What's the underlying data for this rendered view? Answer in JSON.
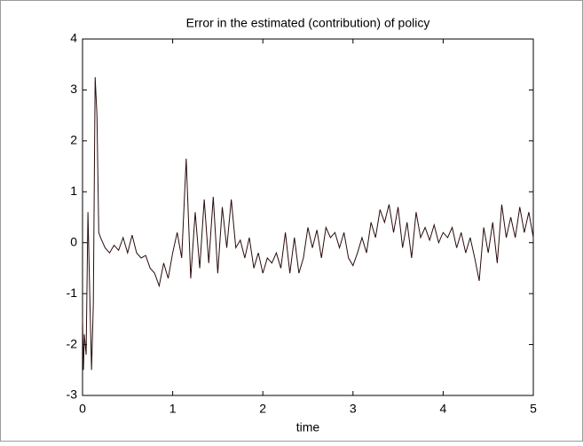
{
  "chart_data": {
    "type": "line",
    "title": "Error in the estimated (contribution) of policy",
    "xlabel": "time",
    "x": [
      0,
      0.01,
      0.02,
      0.04,
      0.06,
      0.08,
      0.1,
      0.12,
      0.14,
      0.16,
      0.18,
      0.2,
      0.25,
      0.3,
      0.35,
      0.4,
      0.45,
      0.5,
      0.55,
      0.6,
      0.65,
      0.7,
      0.75,
      0.8,
      0.85,
      0.9,
      0.95,
      1.0,
      1.05,
      1.1,
      1.15,
      1.2,
      1.25,
      1.3,
      1.35,
      1.4,
      1.45,
      1.5,
      1.55,
      1.6,
      1.65,
      1.7,
      1.75,
      1.8,
      1.85,
      1.9,
      1.95,
      2.0,
      2.05,
      2.1,
      2.15,
      2.2,
      2.25,
      2.3,
      2.35,
      2.4,
      2.45,
      2.5,
      2.55,
      2.6,
      2.65,
      2.7,
      2.75,
      2.8,
      2.85,
      2.9,
      2.95,
      3.0,
      3.05,
      3.1,
      3.15,
      3.2,
      3.25,
      3.3,
      3.35,
      3.4,
      3.45,
      3.5,
      3.55,
      3.6,
      3.65,
      3.7,
      3.75,
      3.8,
      3.85,
      3.9,
      3.95,
      4.0,
      4.05,
      4.1,
      4.15,
      4.2,
      4.25,
      4.3,
      4.35,
      4.4,
      4.45,
      4.5,
      4.55,
      4.6,
      4.65,
      4.7,
      4.75,
      4.8,
      4.85,
      4.9,
      4.95,
      5.0
    ],
    "series": [
      {
        "color": "#2a0b0b",
        "values": [
          -1.5,
          -2.5,
          -1.8,
          -2.2,
          0.6,
          -1.0,
          -2.5,
          -1.2,
          3.25,
          2.5,
          0.2,
          0.1,
          -0.1,
          -0.2,
          -0.05,
          -0.15,
          0.1,
          -0.2,
          0.15,
          -0.2,
          -0.3,
          -0.25,
          -0.5,
          -0.6,
          -0.85,
          -0.4,
          -0.7,
          -0.2,
          0.2,
          -0.3,
          1.65,
          -0.7,
          0.6,
          -0.5,
          0.85,
          -0.4,
          0.9,
          -0.6,
          0.7,
          -0.1,
          0.85,
          -0.1,
          0.05,
          -0.3,
          0.1,
          -0.5,
          -0.2,
          -0.6,
          -0.3,
          -0.4,
          -0.2,
          -0.5,
          0.2,
          -0.6,
          0.1,
          -0.6,
          -0.3,
          0.3,
          -0.1,
          0.25,
          -0.3,
          0.3,
          0.1,
          0.2,
          -0.1,
          0.2,
          -0.3,
          -0.45,
          -0.2,
          0.1,
          -0.2,
          0.4,
          0.1,
          0.65,
          0.4,
          0.75,
          0.2,
          0.7,
          -0.1,
          0.4,
          -0.3,
          0.6,
          0.1,
          0.3,
          0.05,
          0.35,
          0.0,
          0.2,
          0.1,
          0.3,
          -0.1,
          0.2,
          -0.2,
          0.1,
          -0.3,
          -0.75,
          0.3,
          -0.2,
          0.4,
          -0.4,
          0.75,
          0.1,
          0.5,
          0.1,
          0.7,
          0.2,
          0.6,
          0.1
        ]
      }
    ],
    "xlim": [
      0,
      5
    ],
    "ylim": [
      -3,
      4
    ],
    "xticks": [
      0,
      1,
      2,
      3,
      4,
      5
    ],
    "yticks": [
      -3,
      -2,
      -1,
      0,
      1,
      2,
      3,
      4
    ],
    "grid": false
  }
}
